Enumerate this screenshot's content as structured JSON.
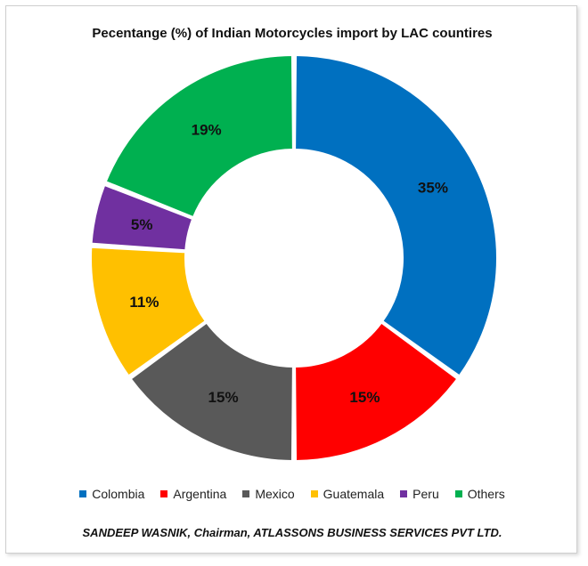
{
  "chart_data": {
    "type": "pie",
    "title": "Pecentange (%) of Indian Motorcycles import by LAC countires",
    "categories": [
      "Colombia",
      "Argentina",
      "Mexico",
      "Guatemala",
      "Peru",
      "Others"
    ],
    "values": [
      35,
      15,
      15,
      11,
      5,
      19
    ],
    "data_labels": [
      "35%",
      "15%",
      "15%",
      "11%",
      "5%",
      "19%"
    ],
    "colors": [
      "#0070C0",
      "#FF0000",
      "#595959",
      "#FFC000",
      "#7030A0",
      "#00B050"
    ],
    "legend_position": "bottom",
    "donut": true
  },
  "footer": "SANDEEP WASNIK, Chairman, ATLASSONS BUSINESS SERVICES PVT LTD."
}
